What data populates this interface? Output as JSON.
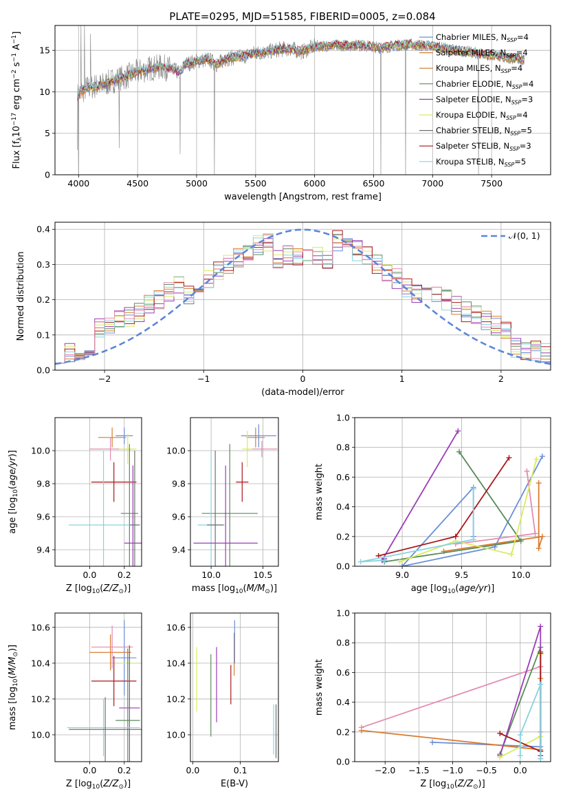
{
  "figure_title": "PLATE=0295, MJD=51585, FIBERID=0005, z=0.084",
  "colors": {
    "Chabrier MILES": "#6a8fd8",
    "Salpeter MILES": "#d87a2e",
    "Kroupa MILES": "#c87828",
    "Chabrier ELODIE": "#5a8a5a",
    "Salpeter ELODIE": "#9a3ab8",
    "Kroupa ELODIE": "#d8ec5a",
    "Chabrier STELIB": "#6e6e6e",
    "Salpeter STELIB": "#a8161a",
    "Kroupa STELIB": "#86d2e0",
    "data": "#7f7f7f",
    "pink": "#e58ab0",
    "gauss": "#5b86d8"
  },
  "chart_data": [
    {
      "id": "spectrum",
      "type": "line",
      "title": "PLATE=0295, MJD=51585, FIBERID=0005, z=0.084",
      "xlabel": "wavelength [Angstrom, rest frame]",
      "ylabel": "Flux [f",
      "xlim": [
        3800,
        8000
      ],
      "ylim": [
        0,
        18
      ],
      "xticks": [
        4000,
        4500,
        5000,
        5500,
        6000,
        6500,
        7000,
        7500
      ],
      "yticks": [
        0,
        5,
        10,
        15
      ],
      "legend_position": "upper right",
      "legend": [
        {
          "label": "Chabrier MILES, N",
          "sub": "SSP",
          "tail": "=4",
          "color": "#6a8fd8"
        },
        {
          "label": "Salpeter MILES, N",
          "sub": "SSP",
          "tail": "=4",
          "color": "#d87a2e"
        },
        {
          "label": "Kroupa MILES, N",
          "sub": "SSP",
          "tail": "=4",
          "color": "#c87828"
        },
        {
          "label": "Chabrier ELODIE, N",
          "sub": "SSP",
          "tail": "=4",
          "color": "#5a8a5a"
        },
        {
          "label": "Salpeter ELODIE, N",
          "sub": "SSP",
          "tail": "=3",
          "color": "#9a3ab8"
        },
        {
          "label": "Kroupa ELODIE, N",
          "sub": "SSP",
          "tail": "=4",
          "color": "#d8ec5a"
        },
        {
          "label": "Chabrier STELIB, N",
          "sub": "SSP",
          "tail": "=5",
          "color": "#6e6e6e"
        },
        {
          "label": "Salpeter STELIB, N",
          "sub": "SSP",
          "tail": "=3",
          "color": "#a8161a"
        },
        {
          "label": "Kroupa STELIB, N",
          "sub": "SSP",
          "tail": "=5",
          "color": "#86d2e0"
        }
      ],
      "model_continuum": [
        [
          3990,
          9.5
        ],
        [
          4050,
          10.3
        ],
        [
          4100,
          10.6
        ],
        [
          4200,
          10.8
        ],
        [
          4300,
          11.4
        ],
        [
          4400,
          11.8
        ],
        [
          4500,
          12.4
        ],
        [
          4600,
          12.8
        ],
        [
          4700,
          13.0
        ],
        [
          4800,
          12.7
        ],
        [
          4860,
          12.2
        ],
        [
          4900,
          13.3
        ],
        [
          5000,
          13.7
        ],
        [
          5100,
          13.9
        ],
        [
          5170,
          13.3
        ],
        [
          5250,
          14.0
        ],
        [
          5400,
          14.3
        ],
        [
          5500,
          14.7
        ],
        [
          5600,
          14.8
        ],
        [
          5700,
          15.1
        ],
        [
          5800,
          15.2
        ],
        [
          5890,
          14.8
        ],
        [
          6000,
          15.5
        ],
        [
          6200,
          15.6
        ],
        [
          6400,
          15.6
        ],
        [
          6560,
          15.3
        ],
        [
          6700,
          15.6
        ],
        [
          6800,
          15.7
        ],
        [
          6900,
          15.6
        ],
        [
          7000,
          15.5
        ],
        [
          7200,
          15.0
        ],
        [
          7400,
          14.6
        ],
        [
          7600,
          14.2
        ],
        [
          7800,
          13.8
        ]
      ],
      "data_drops": [
        [
          3990,
          3.0
        ],
        [
          4000,
          0.0
        ],
        [
          4020,
          2.5
        ],
        [
          4345,
          3.2
        ],
        [
          4860,
          2.5
        ],
        [
          5150,
          0.0
        ],
        [
          6560,
          0.0
        ],
        [
          6770,
          0.0
        ],
        [
          7390,
          0.0
        ]
      ],
      "data_spikes": [
        [
          4020,
          18.0
        ],
        [
          4050,
          18.0
        ],
        [
          4100,
          17.0
        ]
      ]
    },
    {
      "id": "residuals",
      "type": "histogram",
      "xlabel": "(data-model)/error",
      "ylabel": "Normed distribution",
      "xlim": [
        -2.5,
        2.5
      ],
      "ylim": [
        0,
        0.42
      ],
      "xticks": [
        -2,
        -1,
        0,
        1,
        2
      ],
      "xtick_labels": [
        "−2",
        "−1",
        "0",
        "1",
        "2"
      ],
      "yticks": [
        0.0,
        0.1,
        0.2,
        0.3,
        0.4
      ],
      "ytick_labels": [
        "0.0",
        "0.1",
        "0.2",
        "0.3",
        "0.4"
      ],
      "legend": "𝒩(0, 1)",
      "gaussian": {
        "mean": 0,
        "sigma": 1
      }
    },
    {
      "id": "age_vs_Z",
      "type": "errorbar",
      "xlabel": "Z [log",
      "ylabel": "age  [log",
      "xlim": [
        -0.2,
        0.3
      ],
      "ylim": [
        9.3,
        10.2
      ],
      "xticks": [
        0.0,
        0.2
      ],
      "xtick_labels": [
        "0.0",
        "0.2"
      ],
      "yticks": [
        9.4,
        9.6,
        9.8,
        10.0
      ],
      "ytick_labels": [
        "9.4",
        "9.6",
        "9.8",
        "10.0"
      ],
      "points": [
        {
          "color": "#6a8fd8",
          "x": 0.2,
          "xerr": 0.05,
          "y": 10.09,
          "yerr": 0.05
        },
        {
          "color": "#d87a2e",
          "x": 0.13,
          "xerr": 0.08,
          "y": 10.08,
          "yerr": 0.06
        },
        {
          "color": "#e58ab0",
          "x": 0.12,
          "xerr": 0.12,
          "y": 10.01,
          "yerr": 0.07
        },
        {
          "color": "#d8ec5a",
          "x": 0.22,
          "xerr": 0.05,
          "y": 10.01,
          "yerr": 0.09
        },
        {
          "color": "#a8161a",
          "x": 0.14,
          "xerr": 0.13,
          "y": 9.81,
          "yerr": 0.12
        },
        {
          "color": "#5a8a5a",
          "x": 0.23,
          "xerr": 0.05,
          "y": 9.62,
          "yerr": 0.42
        },
        {
          "color": "#86d2e0",
          "x": 0.08,
          "xerr": 0.2,
          "y": 9.55,
          "yerr": 0.45
        },
        {
          "color": "#9a3ab8",
          "x": 0.25,
          "xerr": 0.05,
          "y": 9.44,
          "yerr": 0.47
        },
        {
          "color": "#6e6e6e",
          "x": 0.26,
          "xerr": 0.03,
          "y": 9.55,
          "yerr": 0.45
        }
      ]
    },
    {
      "id": "age_vs_mass",
      "type": "errorbar",
      "xlabel": "mass [log",
      "ylabel": "",
      "xlim": [
        9.8,
        10.65
      ],
      "ylim": [
        9.3,
        10.2
      ],
      "xticks": [
        10.0,
        10.5
      ],
      "xtick_labels": [
        "10.0",
        "10.5"
      ],
      "yticks": [
        9.4,
        9.6,
        9.8,
        10.0
      ],
      "ytick_labels": [
        "9.4",
        "9.6",
        "9.8",
        "10.0"
      ],
      "points": [
        {
          "color": "#6a8fd8",
          "x": 10.46,
          "xerr": 0.17,
          "y": 10.09,
          "yerr": 0.07
        },
        {
          "color": "#d87a2e",
          "x": 10.43,
          "xerr": 0.09,
          "y": 10.08,
          "yerr": 0.06
        },
        {
          "color": "#e58ab0",
          "x": 10.49,
          "xerr": 0.15,
          "y": 10.01,
          "yerr": 0.05
        },
        {
          "color": "#d8ec5a",
          "x": 10.35,
          "xerr": 0.05,
          "y": 10.01,
          "yerr": 0.11
        },
        {
          "color": "#a8161a",
          "x": 10.3,
          "xerr": 0.06,
          "y": 9.81,
          "yerr": 0.12
        },
        {
          "color": "#5a8a5a",
          "x": 10.18,
          "xerr": 0.27,
          "y": 9.62,
          "yerr": 0.42
        },
        {
          "color": "#86d2e0",
          "x": 10.0,
          "xerr": 0.13,
          "y": 9.55,
          "yerr": 0.44
        },
        {
          "color": "#9a3ab8",
          "x": 10.14,
          "xerr": 0.31,
          "y": 9.44,
          "yerr": 0.47
        },
        {
          "color": "#6e6e6e",
          "x": 10.04,
          "xerr": 0.08,
          "y": 9.55,
          "yerr": 0.45
        }
      ]
    },
    {
      "id": "weight_vs_age",
      "type": "line",
      "xlabel": "age  [log",
      "ylabel": "mass weight",
      "xlim": [
        8.6,
        10.25
      ],
      "ylim": [
        0,
        1.0
      ],
      "xticks": [
        9.0,
        9.5,
        10.0
      ],
      "xtick_labels": [
        "9.0",
        "9.5",
        "10.0"
      ],
      "yticks": [
        0.0,
        0.2,
        0.4,
        0.6,
        0.8,
        1.0
      ],
      "ytick_labels": [
        "0.0",
        "0.2",
        "0.4",
        "0.6",
        "0.8",
        "1.0"
      ],
      "series": [
        {
          "color": "#6a8fd8",
          "points": [
            [
              10.18,
              0.74
            ],
            [
              9.78,
              0.13
            ],
            [
              9.0,
              0.0
            ],
            [
              9.6,
              0.53
            ],
            [
              9.6,
              0.2
            ]
          ]
        },
        {
          "color": "#d87a2e",
          "points": [
            [
              10.15,
              0.56
            ],
            [
              10.15,
              0.12
            ],
            [
              10.18,
              0.2
            ],
            [
              9.35,
              0.1
            ]
          ]
        },
        {
          "color": "#e58ab0",
          "points": [
            [
              10.05,
              0.64
            ],
            [
              10.12,
              0.22
            ],
            [
              9.45,
              0.15
            ]
          ]
        },
        {
          "color": "#5a8a5a",
          "points": [
            [
              9.48,
              0.77
            ],
            [
              10.0,
              0.17
            ],
            [
              8.85,
              0.03
            ]
          ]
        },
        {
          "color": "#9a3ab8",
          "points": [
            [
              9.47,
              0.91
            ],
            [
              8.83,
              0.04
            ],
            [
              8.85,
              0.05
            ]
          ]
        },
        {
          "color": "#d8ec5a",
          "points": [
            [
              10.13,
              0.72
            ],
            [
              9.92,
              0.08
            ],
            [
              9.45,
              0.17
            ],
            [
              8.98,
              0.03
            ]
          ]
        },
        {
          "color": "#a8161a",
          "points": [
            [
              9.9,
              0.73
            ],
            [
              9.45,
              0.2
            ],
            [
              8.8,
              0.07
            ]
          ]
        },
        {
          "color": "#86d2e0",
          "points": [
            [
              9.6,
              0.52
            ],
            [
              9.6,
              0.18
            ],
            [
              8.65,
              0.03
            ],
            [
              8.85,
              0.04
            ]
          ]
        }
      ]
    },
    {
      "id": "mass_vs_Z",
      "type": "errorbar",
      "xlabel": "Z [log",
      "ylabel": "mass [log",
      "xlim": [
        -0.2,
        0.3
      ],
      "ylim": [
        9.85,
        10.68
      ],
      "xticks": [
        0.0,
        0.2
      ],
      "xtick_labels": [
        "0.0",
        "0.2"
      ],
      "yticks": [
        10.0,
        10.2,
        10.4,
        10.6
      ],
      "ytick_labels": [
        "10.0",
        "10.2",
        "10.4",
        "10.6"
      ],
      "points": [
        {
          "color": "#6a8fd8",
          "x": 0.2,
          "xerr": 0.07,
          "y": 10.43,
          "yerr": 0.21
        },
        {
          "color": "#d87a2e",
          "x": 0.12,
          "xerr": 0.12,
          "y": 10.46,
          "yerr": 0.1
        },
        {
          "color": "#e58ab0",
          "x": 0.13,
          "xerr": 0.12,
          "y": 10.49,
          "yerr": 0.12
        },
        {
          "color": "#d8ec5a",
          "x": 0.22,
          "xerr": 0.05,
          "y": 10.4,
          "yerr": 0.1
        },
        {
          "color": "#a8161a",
          "x": 0.14,
          "xerr": 0.13,
          "y": 10.3,
          "yerr": 0.14
        },
        {
          "color": "#9a3ab8",
          "x": 0.23,
          "xerr": 0.06,
          "y": 10.15,
          "yerr": 0.35
        },
        {
          "color": "#5a8a5a",
          "x": 0.22,
          "xerr": 0.07,
          "y": 10.08,
          "yerr": 0.4
        },
        {
          "color": "#86d2e0",
          "x": 0.08,
          "xerr": 0.21,
          "y": 10.04,
          "yerr": 0.16
        },
        {
          "color": "#6e6e6e",
          "x": 0.09,
          "xerr": 0.21,
          "y": 10.03,
          "yerr": 0.18
        }
      ]
    },
    {
      "id": "mass_vs_ebv",
      "type": "errorbar",
      "xlabel": "E(B-V)",
      "ylabel": "",
      "xlim": [
        -0.005,
        0.18
      ],
      "ylim": [
        9.85,
        10.68
      ],
      "xticks": [
        0.0,
        0.1
      ],
      "xtick_labels": [
        "0.0",
        "0.1"
      ],
      "yticks": [
        10.0,
        10.2,
        10.4,
        10.6
      ],
      "ytick_labels": [
        "10.0",
        "10.2",
        "10.4",
        "10.6"
      ],
      "points": [
        {
          "color": "#d8ec5a",
          "x": 0.008,
          "y": 10.31,
          "yerr": 0.18
        },
        {
          "color": "#5a8a5a",
          "x": 0.038,
          "y": 10.22,
          "yerr": 0.23
        },
        {
          "color": "#9a3ab8",
          "x": 0.05,
          "y": 10.28,
          "yerr": 0.21
        },
        {
          "color": "#a8161a",
          "x": 0.08,
          "y": 10.28,
          "yerr": 0.11
        },
        {
          "color": "#d87a2e",
          "x": 0.087,
          "y": 10.45,
          "yerr": 0.12
        },
        {
          "color": "#6a8fd8",
          "x": 0.088,
          "y": 10.52,
          "yerr": 0.12
        },
        {
          "color": "#86d2e0",
          "x": 0.17,
          "y": 10.03,
          "yerr": 0.14
        },
        {
          "color": "#6e6e6e",
          "x": 0.175,
          "y": 10.02,
          "yerr": 0.15
        }
      ]
    },
    {
      "id": "weight_vs_Z",
      "type": "line",
      "xlabel": "Z [log",
      "ylabel": "mass weight",
      "xlim": [
        -2.45,
        0.45
      ],
      "ylim": [
        0,
        1.0
      ],
      "xticks": [
        -2.0,
        -1.5,
        -1.0,
        -0.5,
        0.0
      ],
      "xtick_labels": [
        "−2.0",
        "−1.5",
        "−1.0",
        "−0.5",
        "0.0"
      ],
      "yticks": [
        0.0,
        0.2,
        0.4,
        0.6,
        0.8,
        1.0
      ],
      "ytick_labels": [
        "0.0",
        "0.2",
        "0.4",
        "0.6",
        "0.8",
        "1.0"
      ],
      "series": [
        {
          "color": "#6a8fd8",
          "points": [
            [
              -1.3,
              0.13
            ],
            [
              0.3,
              0.1
            ],
            [
              0.3,
              0.74
            ]
          ]
        },
        {
          "color": "#d87a2e",
          "points": [
            [
              -2.35,
              0.21
            ],
            [
              0.3,
              0.08
            ],
            [
              0.3,
              0.56
            ]
          ]
        },
        {
          "color": "#e58ab0",
          "points": [
            [
              -2.35,
              0.23
            ],
            [
              0.3,
              0.64
            ],
            [
              0.3,
              0.2
            ]
          ]
        },
        {
          "color": "#5a8a5a",
          "points": [
            [
              -0.3,
              0.05
            ],
            [
              0.3,
              0.77
            ],
            [
              0.3,
              0.02
            ]
          ]
        },
        {
          "color": "#9a3ab8",
          "points": [
            [
              -0.3,
              0.04
            ],
            [
              0.3,
              0.91
            ],
            [
              0.3,
              0.04
            ]
          ]
        },
        {
          "color": "#d8ec5a",
          "points": [
            [
              -0.3,
              0.03
            ],
            [
              0.3,
              0.17
            ],
            [
              0.3,
              0.72
            ]
          ]
        },
        {
          "color": "#a8161a",
          "points": [
            [
              -0.3,
              0.19
            ],
            [
              0.3,
              0.07
            ],
            [
              0.3,
              0.73
            ]
          ]
        },
        {
          "color": "#86d2e0",
          "points": [
            [
              0.0,
              0.04
            ],
            [
              0.0,
              0.18
            ],
            [
              0.3,
              0.52
            ],
            [
              0.3,
              0.02
            ]
          ]
        }
      ]
    }
  ]
}
